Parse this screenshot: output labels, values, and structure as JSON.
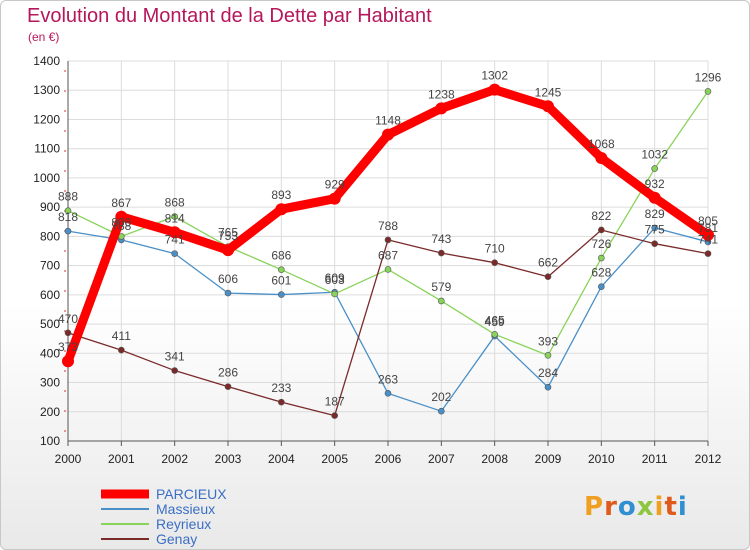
{
  "title": "Evolution du Montant de la Dette par Habitant",
  "subtitle": "(en €)",
  "logo": {
    "text": "Proxiti",
    "colors": [
      "#f0a020",
      "#e05a1c",
      "#2f8fd0",
      "#8dc63f",
      "#f0a020",
      "#e05a1c",
      "#2f8fd0"
    ]
  },
  "chart_data": {
    "type": "line",
    "x": [
      "2000",
      "2001",
      "2002",
      "2003",
      "2004",
      "2005",
      "2006",
      "2007",
      "2008",
      "2009",
      "2010",
      "2011",
      "2012"
    ],
    "ylim": [
      100,
      1400
    ],
    "yticks": [
      100,
      200,
      300,
      400,
      500,
      600,
      700,
      800,
      900,
      1000,
      1100,
      1200,
      1300,
      1400
    ],
    "grid": true,
    "legend": "bottom-left",
    "series": [
      {
        "name": "PARCIEUX",
        "color": "#ff0000",
        "values": [
          373,
          867,
          814,
          753,
          893,
          929,
          1148,
          1238,
          1302,
          1245,
          1068,
          932,
          805
        ]
      },
      {
        "name": "Massieux",
        "color": "#4a90c8",
        "values": [
          818,
          788,
          741,
          606,
          601,
          609,
          263,
          202,
          459,
          284,
          628,
          829,
          781
        ]
      },
      {
        "name": "Reyrieux",
        "color": "#88d35a",
        "values": [
          888,
          800,
          868,
          765,
          686,
          603,
          687,
          579,
          465,
          393,
          726,
          1032,
          1296
        ]
      },
      {
        "name": "Genay",
        "color": "#7b2a2a",
        "values": [
          470,
          411,
          341,
          286,
          233,
          187,
          788,
          743,
          710,
          662,
          822,
          775,
          741
        ]
      }
    ]
  }
}
